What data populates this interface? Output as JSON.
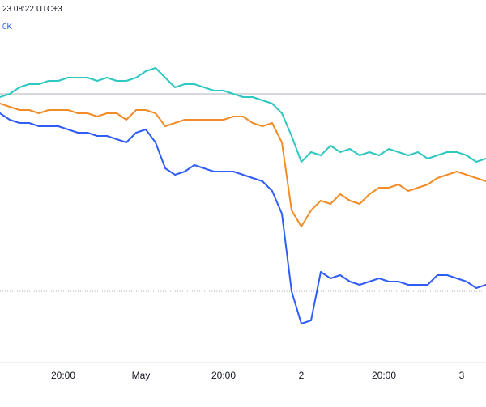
{
  "header": {
    "timestamp_text": "23 08:22 UTC+3",
    "legend_label": "0K"
  },
  "colors": {
    "line_teal": "#2ec8c1",
    "line_orange": "#f28c28",
    "line_blue": "#2f5df5",
    "hline": "#8a91a3",
    "axis_text": "#131722",
    "bg": "#ffffff"
  },
  "chart_data": {
    "type": "line",
    "title": "",
    "xlabel": "",
    "ylabel": "",
    "x_ticks": [
      "20:00",
      "May",
      "20:00",
      "2",
      "20:00",
      "3"
    ],
    "x_tick_positions": [
      0.13,
      0.29,
      0.46,
      0.62,
      0.79,
      0.95
    ],
    "grid": false,
    "legend": "top-left",
    "ylim": [
      0,
      100
    ],
    "x": [
      0,
      2,
      4,
      6,
      8,
      10,
      12,
      14,
      16,
      18,
      20,
      22,
      24,
      26,
      28,
      30,
      32,
      34,
      36,
      38,
      40,
      42,
      44,
      46,
      48,
      50,
      52,
      54,
      56,
      58,
      60,
      62,
      64,
      66,
      68,
      70,
      72,
      74,
      76,
      78,
      80,
      82,
      84,
      86,
      88,
      90,
      92,
      94,
      96,
      98,
      100
    ],
    "series": [
      {
        "color": "#2ec8c1",
        "values": [
          80,
          81,
          83,
          84,
          84,
          85,
          85,
          86,
          86,
          86,
          85,
          86,
          85,
          85,
          86,
          88,
          89,
          86,
          83,
          84,
          84,
          83,
          82,
          82,
          81,
          80,
          80,
          79,
          78,
          75,
          68,
          60,
          63,
          62,
          65,
          63,
          64,
          62,
          63,
          62,
          64,
          63,
          62,
          63,
          61,
          62,
          63,
          63,
          62,
          60,
          61
        ]
      },
      {
        "color": "#f28c28",
        "values": [
          78,
          77,
          76,
          76,
          75,
          76,
          76,
          76,
          75,
          75,
          74,
          75,
          75,
          73,
          76,
          76,
          75,
          71,
          72,
          73,
          73,
          73,
          73,
          73,
          74,
          74,
          72,
          71,
          72,
          66,
          45,
          40,
          45,
          48,
          47,
          50,
          48,
          47,
          50,
          52,
          52,
          53,
          51,
          52,
          53,
          55,
          56,
          57,
          56,
          55,
          54
        ]
      },
      {
        "color": "#2f5df5",
        "values": [
          75,
          73,
          72,
          72,
          71,
          71,
          71,
          70,
          69,
          69,
          68,
          68,
          67,
          66,
          69,
          70,
          66,
          58,
          56,
          57,
          59,
          58,
          57,
          57,
          57,
          56,
          55,
          54,
          51,
          44,
          20,
          10,
          11,
          26,
          24,
          25,
          23,
          22,
          23,
          24,
          23,
          23,
          22,
          22,
          22,
          25,
          25,
          24,
          23,
          21,
          22
        ]
      }
    ],
    "hlines": [
      81,
      20
    ]
  }
}
